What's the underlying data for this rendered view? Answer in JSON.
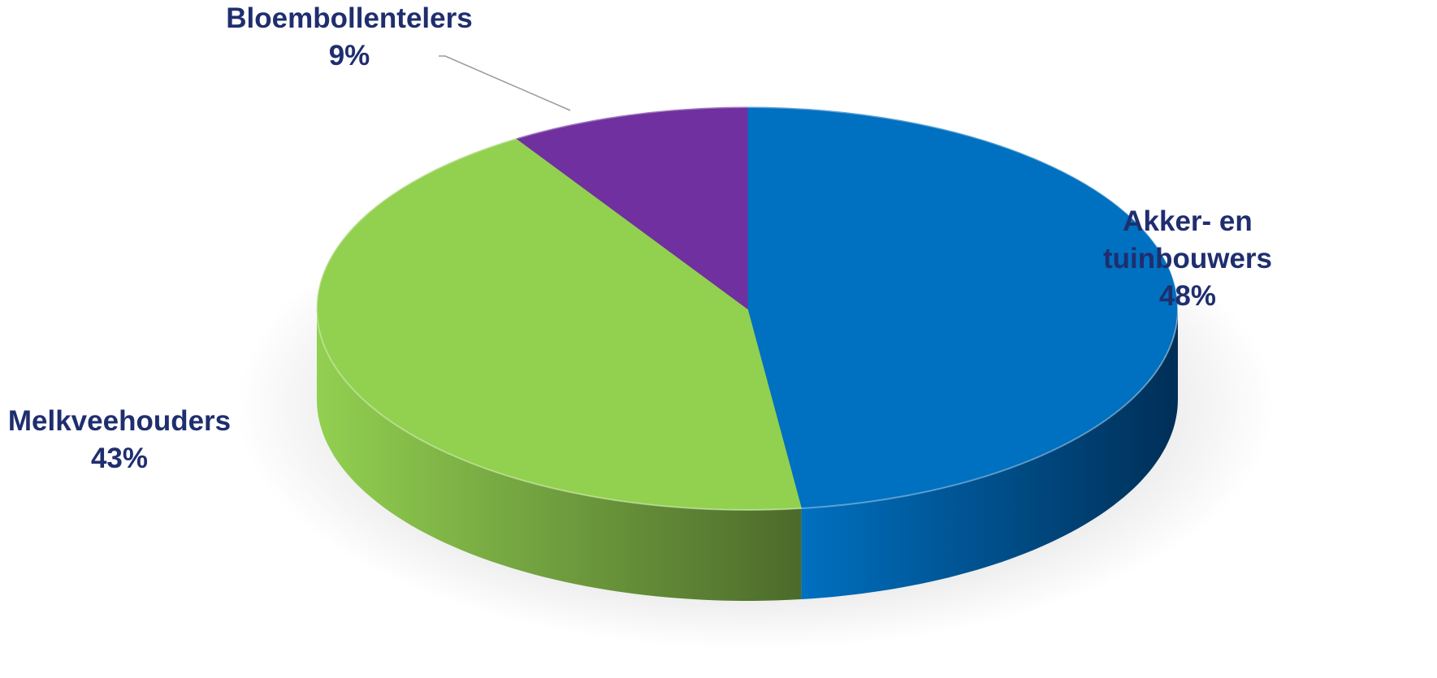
{
  "chart_data": {
    "type": "pie",
    "title": "",
    "slices": [
      {
        "category": "Akker- en tuinbouwers",
        "label_lines": [
          "Akker- en",
          "tuinbouwers"
        ],
        "value": 48,
        "value_label": "48%",
        "color": "#0070C0",
        "side_color": "#002F57"
      },
      {
        "category": "Melkveehouders",
        "label_lines": [
          "Melkveehouders"
        ],
        "value": 43,
        "value_label": "43%",
        "color": "#92D050",
        "side_color": "#4C6A2B"
      },
      {
        "category": "Bloembollentelers",
        "label_lines": [
          "Bloembollentelers"
        ],
        "value": 9,
        "value_label": "9%",
        "color": "#7030A0",
        "side_color": "#3E1A5A"
      }
    ],
    "label_color": "#1F2E6E",
    "legend": "none"
  }
}
